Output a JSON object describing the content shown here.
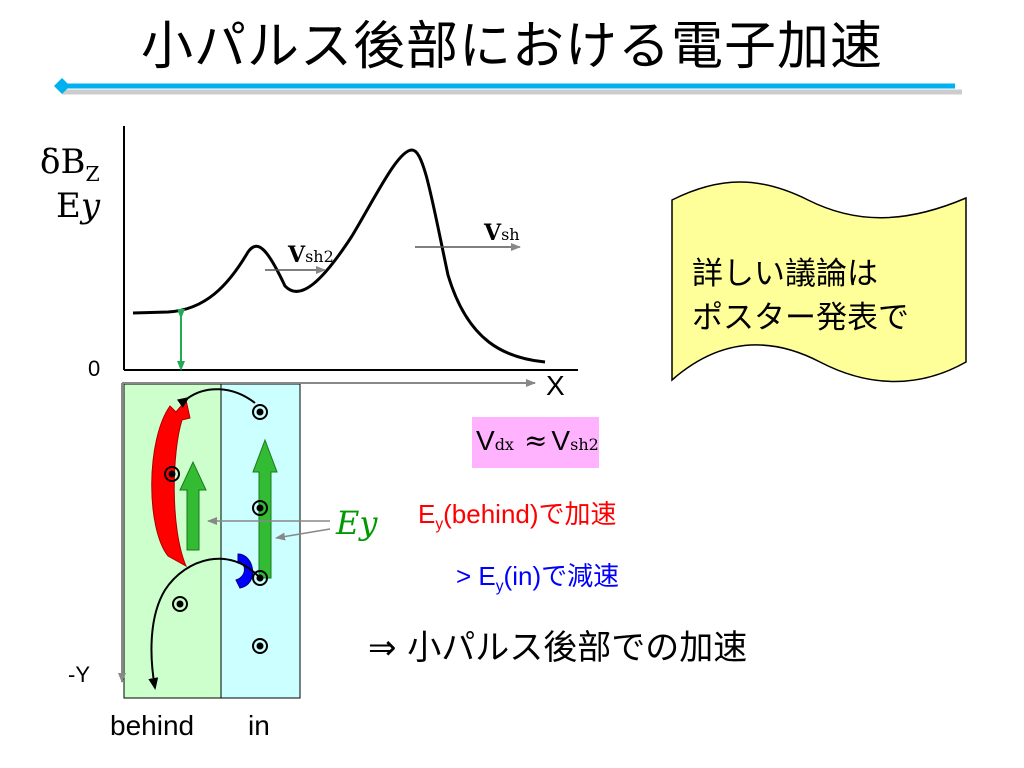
{
  "slide": {
    "title": "小パルス後部における電子加速"
  },
  "axis_labels": {
    "y_top_1": "δB",
    "y_top_1_sub": "Z",
    "y_top_2_main": "E",
    "y_top_2_italic": "y",
    "origin": "0",
    "x_axis": "X",
    "neg_y": "-Y"
  },
  "curve_labels": {
    "vsh2_main": "V",
    "vsh2_sub": "sh2",
    "vsh_main": "V",
    "vsh_sub": "sh"
  },
  "regions": {
    "behind": "behind",
    "in": "in"
  },
  "field_label": "Ey",
  "relation": {
    "left_main": "V",
    "left_sub": "dx",
    "approx": "≈",
    "right_main": "V",
    "right_sub": "sh2"
  },
  "statements": {
    "line1_pre": "E",
    "line1_sub": "y",
    "line1_post": "(behind)で加速",
    "line2_pre": "> E",
    "line2_sub": "y",
    "line2_post": "(in)で減速",
    "conclusion": "⇒  小パルス後部での加速"
  },
  "note": {
    "line1": "詳しい議論は",
    "line2": "ポスター発表で"
  },
  "colors": {
    "accent_red": "#ff0000",
    "accent_blue": "#0000ff",
    "green_arrow": "#33bb33",
    "behind_region": "#ccffcc",
    "in_region": "#ccffff",
    "note_fill": "#ffff99",
    "title_rule": "#00b0f0",
    "ey_green": "#009900"
  }
}
